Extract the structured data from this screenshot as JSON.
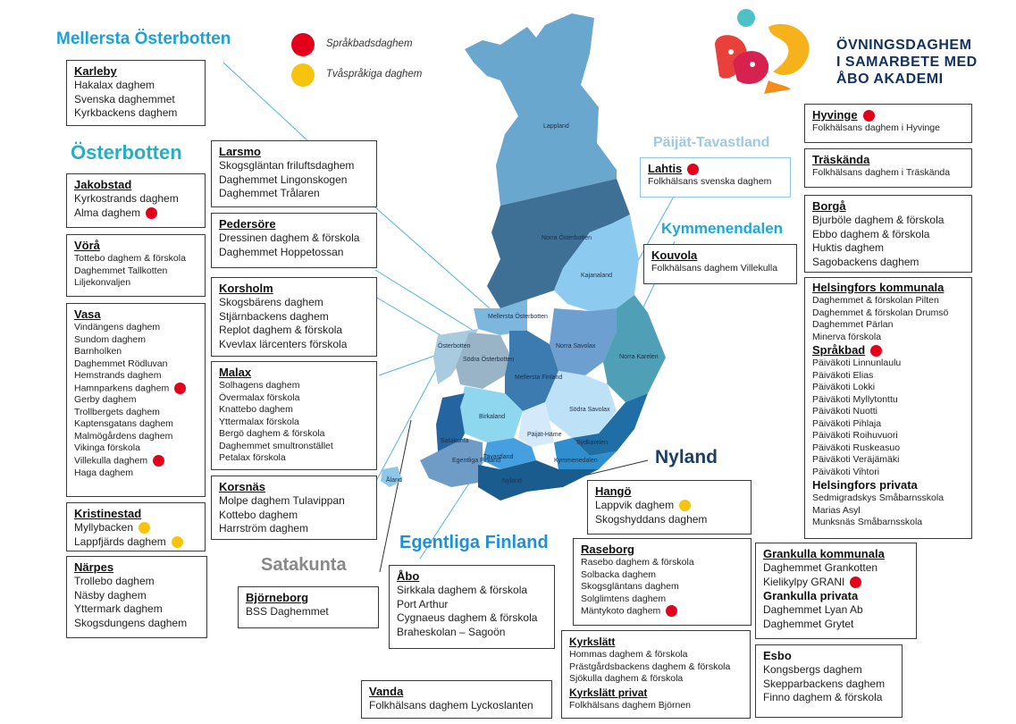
{
  "legend": {
    "red_label": "Språkbadsdaghem",
    "yellow_label": "Tvåspråkiga daghem",
    "red_color": "#e3001b",
    "yellow_color": "#f6c40f"
  },
  "logo": {
    "line1": "ÖVNINGSDAGHEM",
    "line2": "I SAMARBETE MED",
    "line3": "ÅBO AKADEMI"
  },
  "regions": {
    "mellersta": "Mellersta Österbotten",
    "osterbotten": "Österbotten",
    "paijat": "Päijät-Tavastland",
    "kymmene": "Kymmenendalen",
    "nyland": "Nyland",
    "egentliga": "Egentliga Finland",
    "satakunta": "Satakunta"
  },
  "map_labels": {
    "lappland": "Lappland",
    "norra_osterbotten": "Norra Österbotten",
    "kajanaland": "Kajanaland",
    "mellersta_osterbotten": "Mellersta Österbotten",
    "osterbotten": "Österbotten",
    "sodra_osterbotten": "Södra Österbotten",
    "norra_savolax": "Norra Savolax",
    "norra_karelen": "Norra Karelen",
    "mellersta_finland": "Mellersta Finland",
    "birkaland": "Birkaland",
    "sodra_savolax": "Södra Savolax",
    "paijat_hame": "Päijät-Häme",
    "sydkarelen": "Sydkarelen",
    "satakunta": "Satakunta",
    "tavastland": "Tavastland",
    "kymmenedalen": "Kymmenedalen",
    "egentliga_finland": "Egentliga Finland",
    "nyland": "Nyland",
    "aland": "Åland"
  },
  "boxes": {
    "karleby": {
      "title": "Karleby",
      "items": [
        "Hakalax daghem",
        "Svenska daghemmet",
        "Kyrkbackens daghem"
      ]
    },
    "jakobstad": {
      "title": "Jakobstad",
      "items": [
        "Kyrkostrands daghem",
        "Alma daghem"
      ]
    },
    "vora": {
      "title": "Vörå",
      "items": [
        "Tottebo daghem & förskola",
        "Daghemmet Tallkotten",
        "Liljekonvaljen"
      ]
    },
    "vasa": {
      "title": "Vasa",
      "items": [
        "Vindängens daghem",
        "Sundom daghem",
        "Barnholken",
        "Daghemmet Rödluvan",
        "Hemstrands daghem",
        "Hamnparkens daghem",
        "Gerby daghem",
        "Trollbergets daghem",
        "Kaptensgatans daghem",
        "Malmögårdens daghem",
        "Vikinga förskola",
        "Villekulla daghem",
        "Haga daghem"
      ]
    },
    "kristinestad": {
      "title": "Kristinestad",
      "items": [
        "Myllybacken",
        "Lappfjärds daghem"
      ]
    },
    "narpes": {
      "title": "Närpes",
      "items": [
        "Trollebo daghem",
        "Näsby daghem",
        "Yttermark daghem",
        "Skogsdungens daghem"
      ]
    },
    "larsmo": {
      "title": "Larsmo",
      "items": [
        "Skogsgläntan friluftsdaghem",
        "Daghemmet Lingonskogen",
        "Daghemmet Trålaren"
      ]
    },
    "pedersore": {
      "title": "Pedersöre",
      "items": [
        "Dressinen daghem & förskola",
        "Daghemmet Hoppetossan"
      ]
    },
    "korsholm": {
      "title": "Korsholm",
      "items": [
        "Skogsbärens daghem",
        "Stjärnbackens daghem",
        "Replot daghem & förskola",
        "Kvevlax lärcenters förskola"
      ]
    },
    "malax": {
      "title": "Malax",
      "items": [
        "Solhagens daghem",
        "Övermalax förskola",
        "Knattebo daghem",
        "Yttermalax förskola",
        "Bergö daghem & förskola",
        "Daghemmet smultronstället",
        "Petalax förskola"
      ]
    },
    "korsnas": {
      "title": "Korsnäs",
      "items": [
        "Molpe daghem Tulavippan",
        "Kottebo daghem",
        "Harrström daghem"
      ]
    },
    "bjorneborg": {
      "title": "Björneborg",
      "items": [
        "BSS Daghemmet"
      ]
    },
    "abo": {
      "title": "Åbo",
      "items": [
        "Sirkkala daghem & förskola",
        "Port Arthur",
        "Cygnaeus daghem & förskola",
        "Braheskolan – Sagoön"
      ]
    },
    "vanda": {
      "title": "Vanda",
      "items": [
        "Folkhälsans daghem Lyckoslanten"
      ]
    },
    "hango": {
      "title": "Hangö",
      "items": [
        "Lappvik daghem",
        "Skogshyddans daghem"
      ]
    },
    "raseborg": {
      "title": "Raseborg",
      "items": [
        "Rasebo daghem & förskola",
        "Solbacka daghem",
        "Skogsgläntans daghem",
        "Solglimtens daghem",
        "Mäntykoto daghem"
      ]
    },
    "kyrkslatt": {
      "title": "Kyrkslätt",
      "items": [
        "Hommas daghem & förskola",
        "Prästgårdsbackens daghem & förskola",
        "Sjökulla daghem & förskola"
      ],
      "title2": "Kyrkslätt privat",
      "items2": [
        "Folkhälsans daghem Björnen"
      ]
    },
    "grankulla": {
      "title": "Grankulla kommunala",
      "items": [
        "Daghemmet Grankotten",
        "Kielikylpy GRANI"
      ],
      "title2": "Grankulla privata",
      "items2": [
        "Daghemmet Lyan Ab",
        "Daghemmet Grytet"
      ]
    },
    "esbo": {
      "title": "Esbo",
      "items": [
        "Kongsbergs daghem",
        "Skepparbackens daghem",
        "Finno daghem & förskola"
      ]
    },
    "lahtis": {
      "title": "Lahtis",
      "items": [
        "Folkhälsans svenska daghem"
      ]
    },
    "kouvola": {
      "title": "Kouvola",
      "items": [
        "Folkhälsans daghem Villekulla"
      ]
    },
    "hyvinge": {
      "title": "Hyvinge",
      "items": [
        "Folkhälsans daghem i Hyvinge"
      ]
    },
    "traskanda": {
      "title": "Träskända",
      "items": [
        "Folkhälsans daghem i Träskända"
      ]
    },
    "borga": {
      "title": "Borgå",
      "items": [
        "Bjurböle daghem & förskola",
        "Ebbo daghem & förskola",
        "Huktis daghem",
        "Sagobackens daghem"
      ]
    },
    "helsingfors": {
      "title": "Helsingfors kommunala",
      "items": [
        "Daghemmet & förskolan Pilten",
        "Daghemmet & förskolan Drumsö",
        "Daghemmet Pärlan",
        "Minerva förskola"
      ],
      "title2": "Språkbad",
      "items2": [
        "Päiväkoti Linnunlaulu",
        "Päiväkoti Elias",
        "Päiväkoti Lokki",
        "Päiväkoti Myllytonttu",
        "Päiväkoti Nuotti",
        "Päiväkoti Pihlaja",
        "Päiväkoti Roihuvuori",
        "Päiväkoti Ruskeasuo",
        "Päiväkoti Veräjämäki",
        "Päiväkoti Vihtori"
      ],
      "title3": "Helsingfors privata",
      "items3": [
        "Sedmigradskys Småbarnsskola",
        "Marias Asyl",
        "Munksnäs Småbarnsskola"
      ]
    }
  }
}
